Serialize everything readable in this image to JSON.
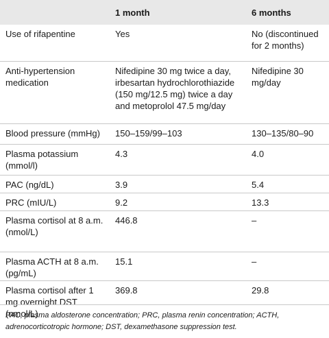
{
  "table": {
    "headers": [
      "",
      "1 month",
      "6 months"
    ],
    "rows": [
      [
        "Use of rifapentine",
        "Yes",
        "No (discontinued for 2 months)"
      ],
      [
        "Anti-hypertension medication",
        "Nifedipine 30 mg twice a day, irbesartan hydrochlorothiazide (150 mg/12.5 mg) twice a day and metoprolol 47.5 mg/day",
        "Nifedipine 30 mg/day"
      ],
      [
        "Blood pressure (mmHg)",
        "150–159/99–103",
        "130–135/80–90"
      ],
      [
        "Plasma potassium (mmol/l)",
        "4.3",
        "4.0"
      ],
      [
        "PAC (ng/dL)",
        "3.9",
        "5.4"
      ],
      [
        "PRC (mIU/L)",
        "9.2",
        "13.3"
      ],
      [
        "Plasma cortisol at 8 a.m. (nmol/L)",
        "446.8",
        "–"
      ],
      [
        "Plasma ACTH at 8 a.m. (pg/mL)",
        "15.1",
        "–"
      ],
      [
        "Plasma cortisol after 1 mg overnight DST (nmol/L)",
        "369.8",
        "29.8"
      ]
    ]
  },
  "footnote": "PAC, plasma aldosterone concentration; PRC, plasma renin concentration; ACTH, adrenocorticotropic hormone; DST, dexamethasone suppression test."
}
